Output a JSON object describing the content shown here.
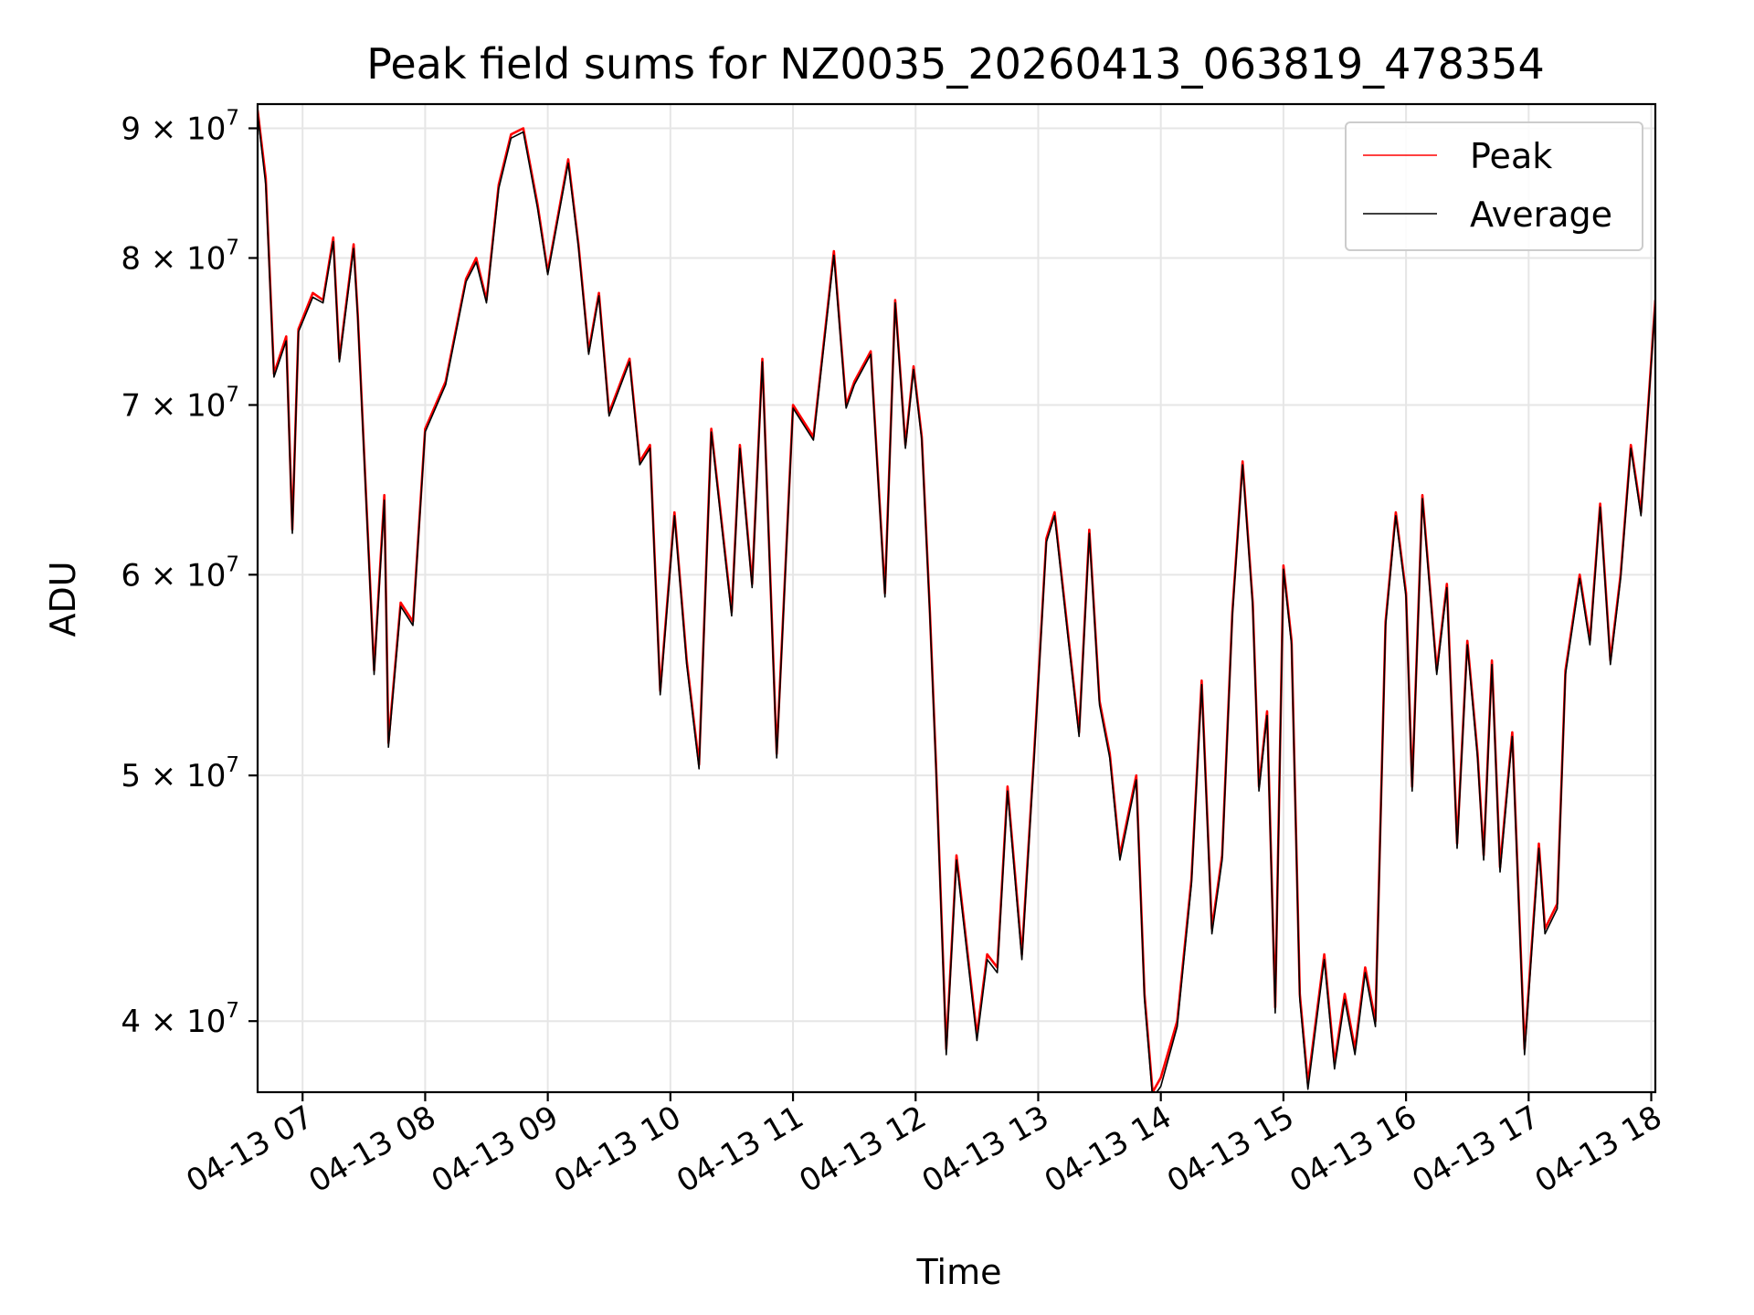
{
  "chart_data": {
    "type": "line",
    "title": "Peak field sums for NZ0035_20260413_063819_478354",
    "xlabel": "Time",
    "ylabel": "ADU",
    "yscale": "log",
    "ylim": [
      37500000,
      92000000
    ],
    "xlim": [
      "2026-04-13 06:38",
      "2026-04-13 18:02"
    ],
    "grid": true,
    "legend_position": "top-right",
    "x_ticks": [
      "04-13 07",
      "04-13 08",
      "04-13 09",
      "04-13 10",
      "04-13 11",
      "04-13 12",
      "04-13 13",
      "04-13 14",
      "04-13 15",
      "04-13 16",
      "04-13 17",
      "04-13 18"
    ],
    "y_ticks": [
      {
        "value": 40000000,
        "mantissa": "4",
        "exponent": "7"
      },
      {
        "value": 50000000,
        "mantissa": "5",
        "exponent": "7"
      },
      {
        "value": 60000000,
        "mantissa": "6",
        "exponent": "7"
      },
      {
        "value": 70000000,
        "mantissa": "7",
        "exponent": "7"
      },
      {
        "value": 80000000,
        "mantissa": "8",
        "exponent": "7"
      },
      {
        "value": 90000000,
        "mantissa": "9",
        "exponent": "7"
      }
    ],
    "y_tick_times": "× 10",
    "x": [
      "2026-04-13 06:38",
      "2026-04-13 06:42",
      "2026-04-13 06:46",
      "2026-04-13 06:52",
      "2026-04-13 06:55",
      "2026-04-13 06:58",
      "2026-04-13 07:05",
      "2026-04-13 07:10",
      "2026-04-13 07:15",
      "2026-04-13 07:18",
      "2026-04-13 07:25",
      "2026-04-13 07:27",
      "2026-04-13 07:35",
      "2026-04-13 07:40",
      "2026-04-13 07:42",
      "2026-04-13 07:48",
      "2026-04-13 07:54",
      "2026-04-13 08:00",
      "2026-04-13 08:10",
      "2026-04-13 08:20",
      "2026-04-13 08:25",
      "2026-04-13 08:30",
      "2026-04-13 08:36",
      "2026-04-13 08:42",
      "2026-04-13 08:48",
      "2026-04-13 08:55",
      "2026-04-13 09:00",
      "2026-04-13 09:10",
      "2026-04-13 09:15",
      "2026-04-13 09:20",
      "2026-04-13 09:25",
      "2026-04-13 09:30",
      "2026-04-13 09:40",
      "2026-04-13 09:45",
      "2026-04-13 09:50",
      "2026-04-13 09:55",
      "2026-04-13 10:02",
      "2026-04-13 10:08",
      "2026-04-13 10:14",
      "2026-04-13 10:20",
      "2026-04-13 10:30",
      "2026-04-13 10:34",
      "2026-04-13 10:40",
      "2026-04-13 10:45",
      "2026-04-13 10:52",
      "2026-04-13 11:00",
      "2026-04-13 11:10",
      "2026-04-13 11:20",
      "2026-04-13 11:26",
      "2026-04-13 11:30",
      "2026-04-13 11:38",
      "2026-04-13 11:45",
      "2026-04-13 11:50",
      "2026-04-13 11:55",
      "2026-04-13 11:59",
      "2026-04-13 12:03",
      "2026-04-13 12:07",
      "2026-04-13 12:10",
      "2026-04-13 12:15",
      "2026-04-13 12:20",
      "2026-04-13 12:30",
      "2026-04-13 12:35",
      "2026-04-13 12:40",
      "2026-04-13 12:45",
      "2026-04-13 12:52",
      "2026-04-13 12:58",
      "2026-04-13 13:04",
      "2026-04-13 13:08",
      "2026-04-13 13:15",
      "2026-04-13 13:20",
      "2026-04-13 13:25",
      "2026-04-13 13:30",
      "2026-04-13 13:35",
      "2026-04-13 13:40",
      "2026-04-13 13:48",
      "2026-04-13 13:52",
      "2026-04-13 13:56",
      "2026-04-13 14:00",
      "2026-04-13 14:08",
      "2026-04-13 14:15",
      "2026-04-13 14:20",
      "2026-04-13 14:25",
      "2026-04-13 14:30",
      "2026-04-13 14:35",
      "2026-04-13 14:40",
      "2026-04-13 14:45",
      "2026-04-13 14:48",
      "2026-04-13 14:52",
      "2026-04-13 14:56",
      "2026-04-13 15:00",
      "2026-04-13 15:04",
      "2026-04-13 15:08",
      "2026-04-13 15:12",
      "2026-04-13 15:20",
      "2026-04-13 15:25",
      "2026-04-13 15:30",
      "2026-04-13 15:35",
      "2026-04-13 15:40",
      "2026-04-13 15:45",
      "2026-04-13 15:50",
      "2026-04-13 15:55",
      "2026-04-13 16:00",
      "2026-04-13 16:03",
      "2026-04-13 16:08",
      "2026-04-13 16:15",
      "2026-04-13 16:20",
      "2026-04-13 16:25",
      "2026-04-13 16:30",
      "2026-04-13 16:35",
      "2026-04-13 16:38",
      "2026-04-13 16:42",
      "2026-04-13 16:46",
      "2026-04-13 16:52",
      "2026-04-13 16:58",
      "2026-04-13 17:05",
      "2026-04-13 17:08",
      "2026-04-13 17:14",
      "2026-04-13 17:18",
      "2026-04-13 17:25",
      "2026-04-13 17:30",
      "2026-04-13 17:35",
      "2026-04-13 17:40",
      "2026-04-13 17:45",
      "2026-04-13 17:50",
      "2026-04-13 17:55",
      "2026-04-13 18:02"
    ],
    "series": [
      {
        "name": "Peak",
        "color": "#ff0000",
        "values": [
          91500000,
          86000000,
          72000000,
          74500000,
          62500000,
          75000000,
          77500000,
          77000000,
          81500000,
          73000000,
          81000000,
          76000000,
          55000000,
          64500000,
          51500000,
          58500000,
          57500000,
          68500000,
          71500000,
          78500000,
          80000000,
          77000000,
          85500000,
          89500000,
          90000000,
          84000000,
          79000000,
          87500000,
          81000000,
          73500000,
          77500000,
          69500000,
          73000000,
          66500000,
          67500000,
          54000000,
          63500000,
          55500000,
          50500000,
          68500000,
          58000000,
          67500000,
          59500000,
          73000000,
          51000000,
          70000000,
          68000000,
          80500000,
          70000000,
          71500000,
          73500000,
          59000000,
          77000000,
          67500000,
          72500000,
          68000000,
          58000000,
          50500000,
          39000000,
          46500000,
          39500000,
          42500000,
          42000000,
          49500000,
          42500000,
          51000000,
          62000000,
          63500000,
          56500000,
          52000000,
          62500000,
          53500000,
          51000000,
          46500000,
          50000000,
          41000000,
          37500000,
          38000000,
          40000000,
          45500000,
          54500000,
          43500000,
          46500000,
          58000000,
          66500000,
          58500000,
          49500000,
          53000000,
          40500000,
          60500000,
          56500000,
          41000000,
          37800000,
          42500000,
          38500000,
          41000000,
          39000000,
          42000000,
          40000000,
          57500000,
          63500000,
          59000000,
          49500000,
          64500000,
          55000000,
          59500000,
          47000000,
          56500000,
          51000000,
          46500000,
          55500000,
          46000000,
          52000000,
          39000000,
          47000000,
          43500000,
          44500000,
          55000000,
          60000000,
          56500000,
          64000000,
          55500000,
          60000000,
          67500000,
          63500000,
          77000000
        ]
      },
      {
        "name": "Average",
        "color": "#000000",
        "values": [
          91200000,
          85500000,
          71800000,
          74200000,
          62300000,
          74800000,
          77200000,
          76800000,
          81200000,
          72800000,
          80700000,
          75800000,
          54800000,
          64200000,
          51300000,
          58300000,
          57300000,
          68300000,
          71300000,
          78300000,
          79700000,
          76800000,
          85200000,
          89200000,
          89700000,
          83700000,
          78800000,
          87200000,
          80800000,
          73300000,
          77300000,
          69300000,
          72800000,
          66300000,
          67300000,
          53800000,
          63300000,
          55300000,
          50300000,
          68300000,
          57800000,
          67300000,
          59300000,
          72800000,
          50800000,
          69800000,
          67800000,
          80200000,
          69800000,
          71300000,
          73300000,
          58800000,
          76800000,
          67300000,
          72300000,
          67800000,
          57800000,
          50300000,
          38800000,
          46300000,
          39300000,
          42300000,
          41800000,
          49300000,
          42300000,
          50800000,
          61800000,
          63300000,
          56300000,
          51800000,
          62300000,
          53300000,
          50800000,
          46300000,
          49800000,
          40800000,
          37300000,
          37700000,
          39800000,
          45300000,
          54300000,
          43300000,
          46300000,
          57800000,
          66300000,
          58300000,
          49300000,
          52800000,
          40300000,
          60300000,
          56300000,
          40800000,
          37600000,
          42300000,
          38300000,
          40800000,
          38800000,
          41800000,
          39800000,
          57300000,
          63300000,
          58800000,
          49300000,
          64300000,
          54800000,
          59300000,
          46800000,
          56300000,
          50800000,
          46300000,
          55300000,
          45800000,
          51800000,
          38800000,
          46800000,
          43300000,
          44300000,
          54800000,
          59800000,
          56300000,
          63800000,
          55300000,
          59800000,
          67300000,
          63300000,
          76800000
        ]
      }
    ]
  }
}
